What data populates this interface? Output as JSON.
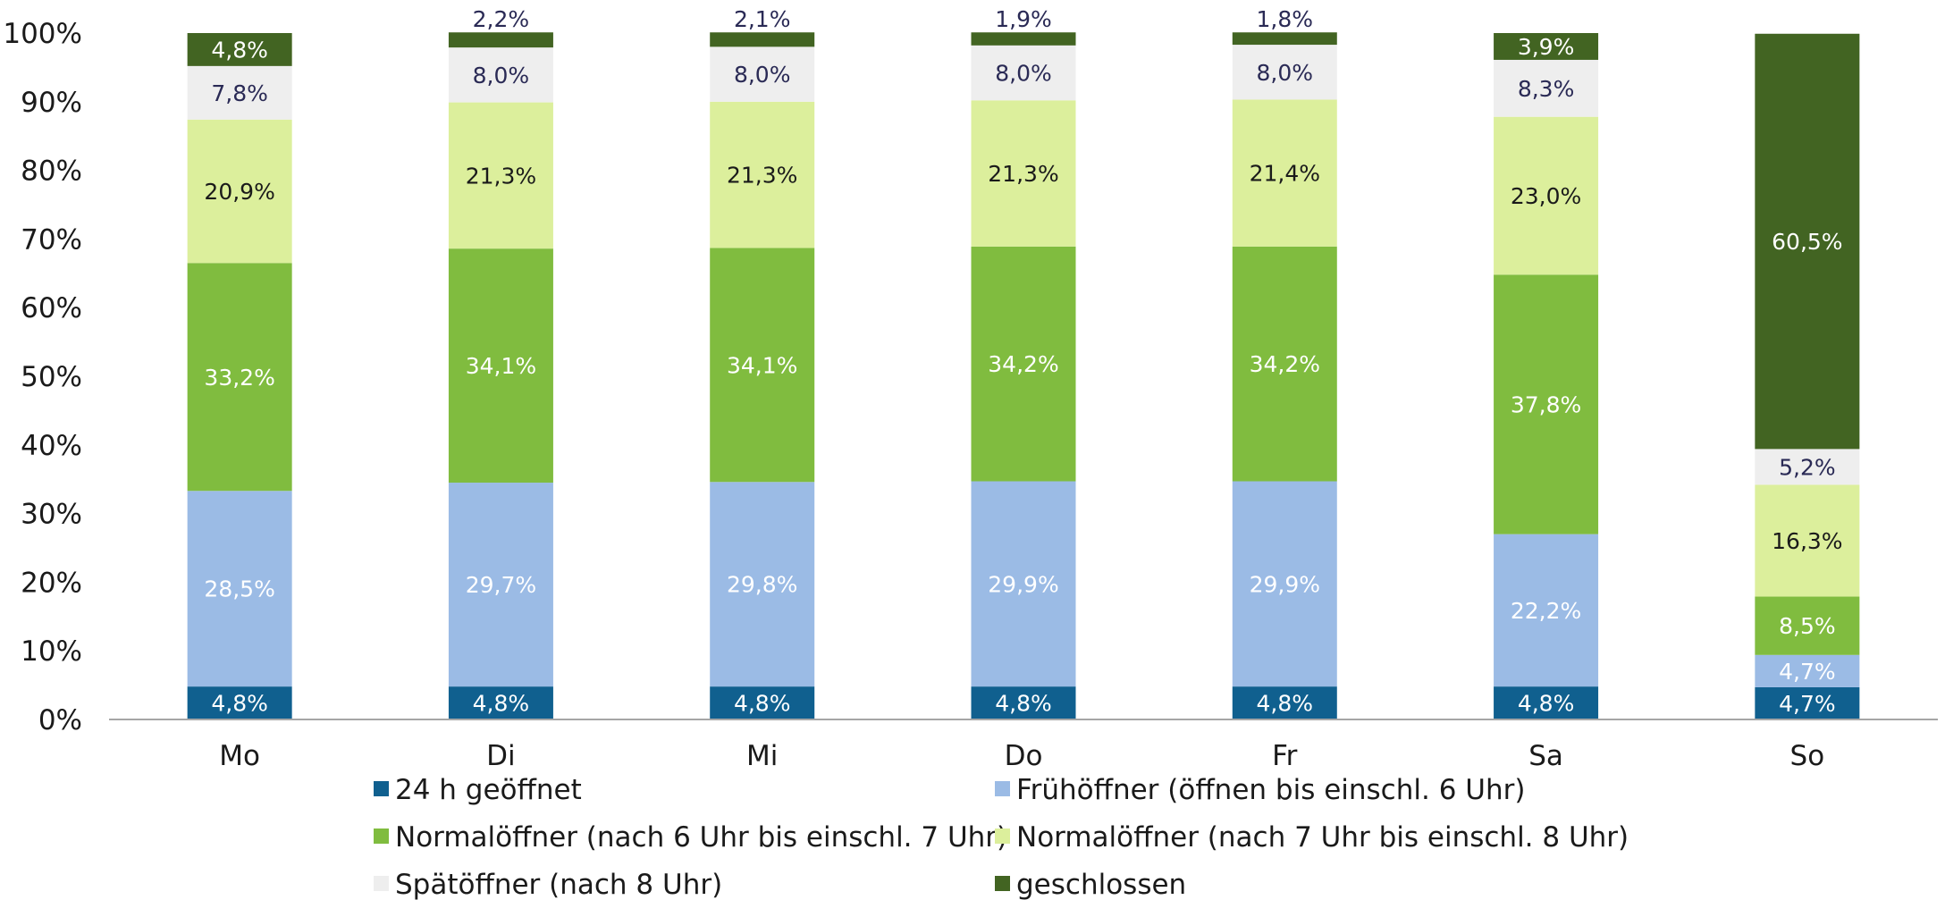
{
  "chart_data": {
    "type": "bar",
    "stacked": true,
    "categories": [
      "Mo",
      "Di",
      "Mi",
      "Do",
      "Fr",
      "Sa",
      "So"
    ],
    "ylim": [
      0,
      100
    ],
    "yticks": [
      "0%",
      "10%",
      "20%",
      "30%",
      "40%",
      "50%",
      "60%",
      "70%",
      "80%",
      "90%",
      "100%"
    ],
    "grid": false,
    "legend_position": "bottom",
    "series": [
      {
        "name": "24 h geöffnet",
        "color": "#10608f",
        "label_color": "#ffffff",
        "values": [
          4.8,
          4.8,
          4.8,
          4.8,
          4.8,
          4.8,
          4.7
        ],
        "labels": [
          "4,8%",
          "4,8%",
          "4,8%",
          "4,8%",
          "4,8%",
          "4,8%",
          "4,7%"
        ]
      },
      {
        "name": "Frühöffner (öffnen bis einschl. 6 Uhr)",
        "color": "#9bbbe5",
        "label_color": "#ffffff",
        "values": [
          28.5,
          29.7,
          29.8,
          29.9,
          29.9,
          22.2,
          4.7
        ],
        "labels": [
          "28,5%",
          "29,7%",
          "29,8%",
          "29,9%",
          "29,9%",
          "22,2%",
          "4,7%"
        ]
      },
      {
        "name": "Normalöffner (nach 6 Uhr bis einschl. 7 Uhr)",
        "color": "#80bc3f",
        "label_color": "#ffffff",
        "values": [
          33.2,
          34.1,
          34.1,
          34.2,
          34.2,
          37.8,
          8.5
        ],
        "labels": [
          "33,2%",
          "34,1%",
          "34,1%",
          "34,2%",
          "34,2%",
          "37,8%",
          "8,5%"
        ]
      },
      {
        "name": "Normalöffner (nach 7 Uhr bis einschl. 8 Uhr)",
        "color": "#dcef9c",
        "label_color": "#1a1a1a",
        "values": [
          20.9,
          21.3,
          21.3,
          21.3,
          21.4,
          23.0,
          16.3
        ],
        "labels": [
          "20,9%",
          "21,3%",
          "21,3%",
          "21,3%",
          "21,4%",
          "23,0%",
          "16,3%"
        ]
      },
      {
        "name": "Spätöffner (nach 8 Uhr)",
        "color": "#eeeeee",
        "label_color": "#2a2a55",
        "values": [
          7.8,
          8.0,
          8.0,
          8.0,
          8.0,
          8.3,
          5.2
        ],
        "labels": [
          "7,8%",
          "8,0%",
          "8,0%",
          "8,0%",
          "8,0%",
          "8,3%",
          "5,2%"
        ]
      },
      {
        "name": "geschlossen",
        "color": "#426422",
        "label_color": "#ffffff",
        "values": [
          4.8,
          2.2,
          2.1,
          1.9,
          1.8,
          3.9,
          60.5
        ],
        "labels": [
          "4,8%",
          "2,2%",
          "2,1%",
          "1,9%",
          "1,8%",
          "3,9%",
          "60,5%"
        ]
      }
    ]
  }
}
